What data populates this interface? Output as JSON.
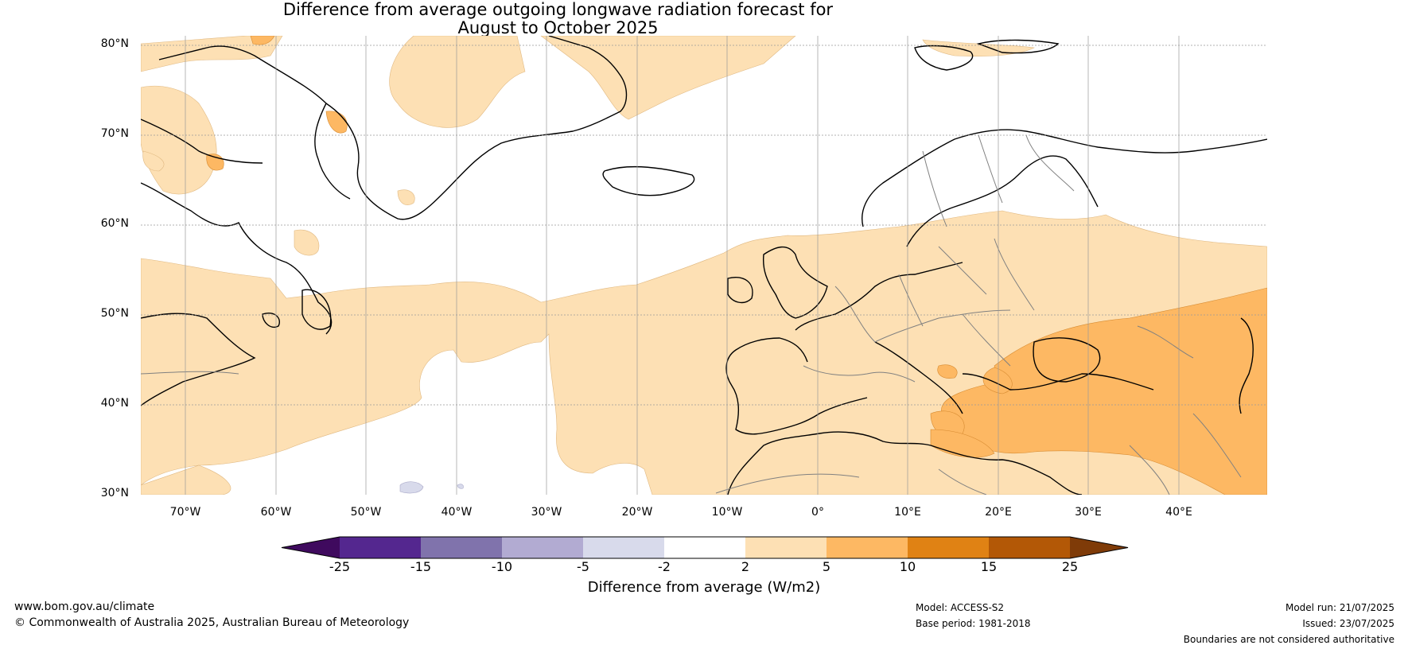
{
  "title_line1": "Difference from average outgoing longwave radiation forecast for",
  "title_line2": "August to October 2025",
  "lat_labels": [
    "80°N",
    "70°N",
    "60°N",
    "50°N",
    "40°N",
    "30°N"
  ],
  "lon_labels": [
    "70°W",
    "60°W",
    "50°W",
    "40°W",
    "30°W",
    "20°W",
    "10°W",
    "0°",
    "10°E",
    "20°E",
    "30°E",
    "40°E"
  ],
  "colorbar": {
    "ticks": [
      "-25",
      "-15",
      "-10",
      "-5",
      "-2",
      "2",
      "5",
      "10",
      "15",
      "25"
    ],
    "colors": [
      "#3f0a5e",
      "#54278f",
      "#8073ac",
      "#b2abd2",
      "#d8daeb",
      "#ffffff",
      "#fde0b4",
      "#fdb863",
      "#e08214",
      "#b35806",
      "#7f3b08"
    ],
    "label": "Difference from average (W/m2)"
  },
  "footer": {
    "url": "www.bom.gov.au/climate",
    "copyright": "© Commonwealth of Australia 2025, Australian Bureau of Meteorology",
    "model": "Model: ACCESS-S2",
    "base_period": "Base period: 1981-2018",
    "model_run": "Model run: 21/07/2025",
    "issued": "Issued: 23/07/2025",
    "disclaimer": "Boundaries are not considered authoritative"
  }
}
